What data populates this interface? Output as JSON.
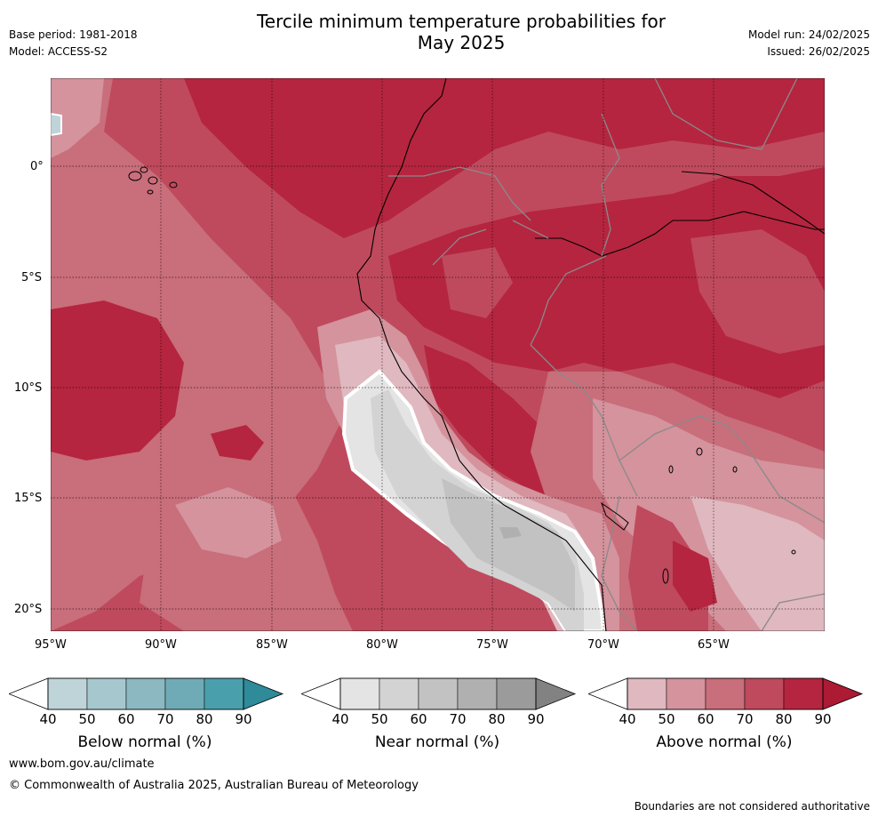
{
  "header": {
    "base_period": "Base period: 1981-2018",
    "model": "Model: ACCESS-S2",
    "title_line1": "Tercile minimum temperature probabilities for",
    "title_line2": "May 2025",
    "model_run": "Model run: 24/02/2025",
    "issued": "Issued: 26/02/2025"
  },
  "map": {
    "lat_labels": [
      "0°",
      "5°S",
      "10°S",
      "15°S",
      "20°S"
    ],
    "lon_labels": [
      "95°W",
      "90°W",
      "85°W",
      "80°W",
      "75°W",
      "70°W",
      "65°W"
    ],
    "colors": {
      "above_40": "#e0b8bf",
      "above_50": "#d4939d",
      "above_60": "#c96e7b",
      "above_70": "#bf4a5d",
      "above_80": "#b5253f",
      "above_90": "#ac1a33",
      "near_40": "#e4e4e4",
      "near_50": "#d3d3d3",
      "near_60": "#c2c2c2",
      "near_70": "#b0b0b0",
      "near_80": "#9b9b9b",
      "near_90": "#828282",
      "below_40": "#bfd4d9",
      "below_50": "#a6c7ce",
      "below_60": "#8bb8c1",
      "below_70": "#6eabb6",
      "below_80": "#4a9fad",
      "below_90": "#2f8a9a"
    }
  },
  "colorbars": [
    {
      "label": "Below normal (%)",
      "ticks": [
        "40",
        "50",
        "60",
        "70",
        "80",
        "90"
      ],
      "colors": [
        "#bfd4d9",
        "#a6c7ce",
        "#8bb8c1",
        "#6eabb6",
        "#4a9fad",
        "#2f8a9a"
      ]
    },
    {
      "label": "Near normal (%)",
      "ticks": [
        "40",
        "50",
        "60",
        "70",
        "80",
        "90"
      ],
      "colors": [
        "#e4e4e4",
        "#d3d3d3",
        "#c2c2c2",
        "#b0b0b0",
        "#9b9b9b",
        "#828282"
      ]
    },
    {
      "label": "Above normal (%)",
      "ticks": [
        "40",
        "50",
        "60",
        "70",
        "80",
        "90"
      ],
      "colors": [
        "#e0b8bf",
        "#d4939d",
        "#c96e7b",
        "#bf4a5d",
        "#b5253f",
        "#ac1a33"
      ]
    }
  ],
  "footer": {
    "website": "www.bom.gov.au/climate",
    "copyright": "© Commonwealth of Australia 2025, Australian Bureau of Meteorology",
    "disclaimer": "Boundaries are not considered authoritative"
  }
}
